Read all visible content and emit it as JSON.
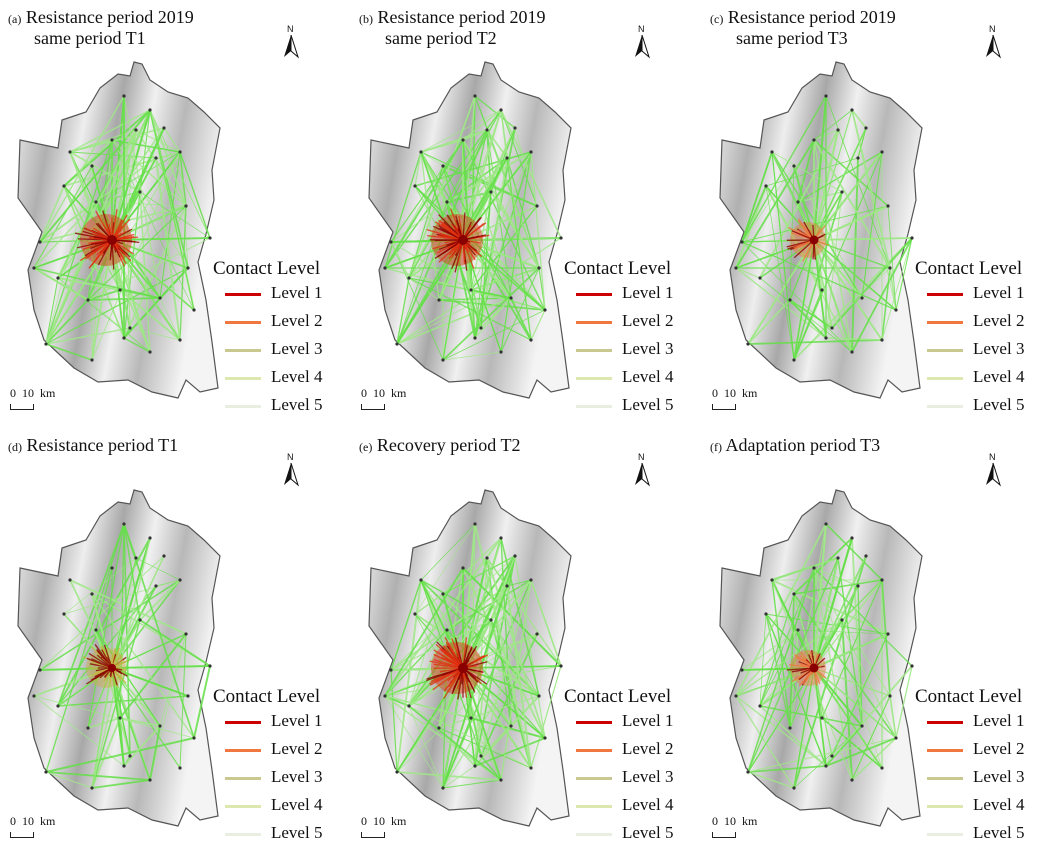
{
  "figure": {
    "panels": [
      {
        "id": "a",
        "tag": "(a)",
        "title_line1": "Resistance period 2019",
        "title_line2": "same period T1",
        "style": "full"
      },
      {
        "id": "b",
        "tag": "(b)",
        "title_line1": "Resistance period 2019",
        "title_line2": "same period T2",
        "style": "full"
      },
      {
        "id": "c",
        "tag": "(c)",
        "title_line1": "Resistance period 2019",
        "title_line2": "same period T3",
        "style": "medium"
      },
      {
        "id": "d",
        "tag": "(d)",
        "title_line1": "Resistance period T1",
        "title_line2": "",
        "style": "sparse"
      },
      {
        "id": "e",
        "tag": "(e)",
        "title_line1": "Recovery period T2",
        "title_line2": "",
        "style": "full"
      },
      {
        "id": "f",
        "tag": "(f)",
        "title_line1": "Adaptation period T3",
        "title_line2": "",
        "style": "medium"
      }
    ],
    "north_label": "N",
    "scale_label": "0  10  km",
    "legend": {
      "title": "Contact Level",
      "items": [
        {
          "label": "Level 1",
          "color": "#cc0000"
        },
        {
          "label": "Level 2",
          "color": "#f07840"
        },
        {
          "label": "Level 3",
          "color": "#c8c890"
        },
        {
          "label": "Level 4",
          "color": "#dce8b0"
        },
        {
          "label": "Level 5",
          "color": "#e8eee0"
        }
      ]
    },
    "colors": {
      "network": "#66e04a",
      "core": "#e03010",
      "hub": "#8a0000",
      "terrain": "#b8b8b8",
      "boundary": "#555555"
    }
  }
}
